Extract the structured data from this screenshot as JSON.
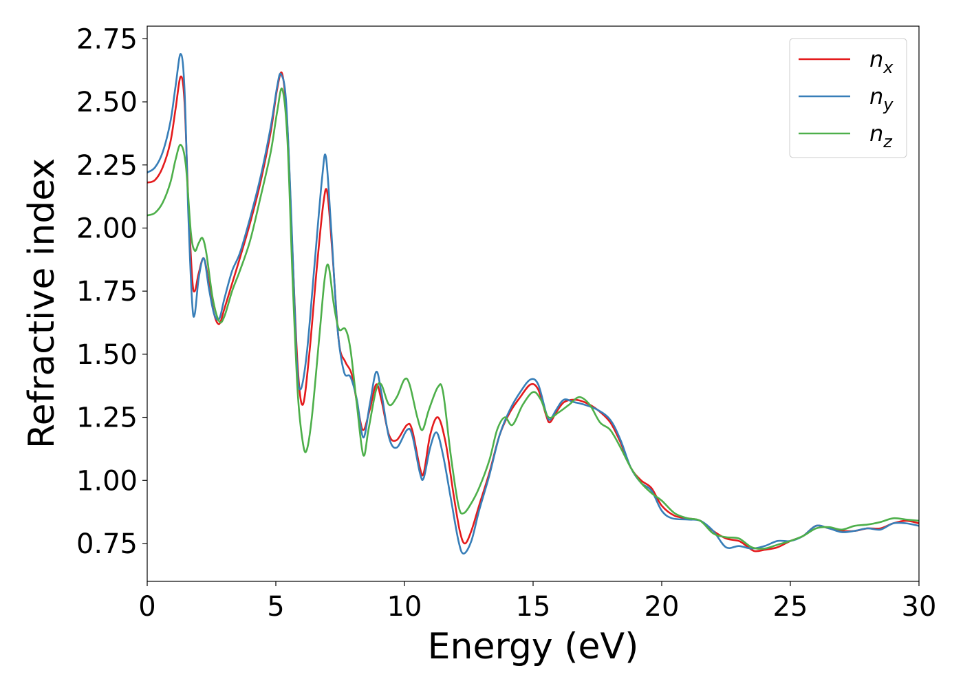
{
  "chart_data": {
    "type": "line",
    "title": "",
    "xlabel": "Energy (eV)",
    "ylabel": "Refractive index",
    "xlim": [
      0,
      30
    ],
    "ylim": [
      0.6,
      2.8
    ],
    "xticks": [
      0,
      5,
      10,
      15,
      20,
      25,
      30
    ],
    "xtick_labels": [
      "0",
      "5",
      "10",
      "15",
      "20",
      "25",
      "30"
    ],
    "yticks": [
      0.75,
      1.0,
      1.25,
      1.5,
      1.75,
      2.0,
      2.25,
      2.5,
      2.75
    ],
    "ytick_labels": [
      "0.75",
      "1.00",
      "1.25",
      "1.50",
      "1.75",
      "2.00",
      "2.25",
      "2.50",
      "2.75"
    ],
    "grid": false,
    "legend_position": "top-right",
    "series": [
      {
        "name": "n",
        "subscript": "x",
        "color": "#e41a1c",
        "points": [
          [
            0,
            2.18
          ],
          [
            0.3,
            2.19
          ],
          [
            0.6,
            2.24
          ],
          [
            0.9,
            2.34
          ],
          [
            1.1,
            2.47
          ],
          [
            1.3,
            2.6
          ],
          [
            1.45,
            2.5
          ],
          [
            1.6,
            2.1
          ],
          [
            1.75,
            1.8
          ],
          [
            1.85,
            1.75
          ],
          [
            2.0,
            1.82
          ],
          [
            2.2,
            1.88
          ],
          [
            2.4,
            1.78
          ],
          [
            2.6,
            1.66
          ],
          [
            2.8,
            1.62
          ],
          [
            3.0,
            1.68
          ],
          [
            3.3,
            1.78
          ],
          [
            3.6,
            1.88
          ],
          [
            4.0,
            2.02
          ],
          [
            4.4,
            2.18
          ],
          [
            4.8,
            2.38
          ],
          [
            5.05,
            2.55
          ],
          [
            5.25,
            2.61
          ],
          [
            5.45,
            2.4
          ],
          [
            5.65,
            1.9
          ],
          [
            5.85,
            1.45
          ],
          [
            6.05,
            1.3
          ],
          [
            6.3,
            1.5
          ],
          [
            6.6,
            1.85
          ],
          [
            6.85,
            2.1
          ],
          [
            7.0,
            2.14
          ],
          [
            7.2,
            1.9
          ],
          [
            7.45,
            1.55
          ],
          [
            7.7,
            1.47
          ],
          [
            7.95,
            1.42
          ],
          [
            8.2,
            1.28
          ],
          [
            8.4,
            1.2
          ],
          [
            8.65,
            1.28
          ],
          [
            8.9,
            1.38
          ],
          [
            9.1,
            1.32
          ],
          [
            9.4,
            1.18
          ],
          [
            9.7,
            1.16
          ],
          [
            10.1,
            1.22
          ],
          [
            10.3,
            1.2
          ],
          [
            10.6,
            1.05
          ],
          [
            10.75,
            1.03
          ],
          [
            11.0,
            1.18
          ],
          [
            11.3,
            1.25
          ],
          [
            11.6,
            1.15
          ],
          [
            11.9,
            0.95
          ],
          [
            12.15,
            0.8
          ],
          [
            12.35,
            0.75
          ],
          [
            12.6,
            0.8
          ],
          [
            12.9,
            0.9
          ],
          [
            13.3,
            1.03
          ],
          [
            13.7,
            1.18
          ],
          [
            14.1,
            1.27
          ],
          [
            14.5,
            1.33
          ],
          [
            14.9,
            1.38
          ],
          [
            15.2,
            1.36
          ],
          [
            15.5,
            1.26
          ],
          [
            15.65,
            1.23
          ],
          [
            15.9,
            1.27
          ],
          [
            16.2,
            1.31
          ],
          [
            16.6,
            1.32
          ],
          [
            17.0,
            1.31
          ],
          [
            17.5,
            1.28
          ],
          [
            18.0,
            1.23
          ],
          [
            18.4,
            1.15
          ],
          [
            18.8,
            1.05
          ],
          [
            19.2,
            1.0
          ],
          [
            19.6,
            0.97
          ],
          [
            20.0,
            0.9
          ],
          [
            20.5,
            0.86
          ],
          [
            21.0,
            0.85
          ],
          [
            21.5,
            0.84
          ],
          [
            22.0,
            0.8
          ],
          [
            22.5,
            0.77
          ],
          [
            23.0,
            0.76
          ],
          [
            23.3,
            0.74
          ],
          [
            23.6,
            0.72
          ],
          [
            24.0,
            0.725
          ],
          [
            24.5,
            0.735
          ],
          [
            25.0,
            0.76
          ],
          [
            25.5,
            0.78
          ],
          [
            26.0,
            0.82
          ],
          [
            26.5,
            0.81
          ],
          [
            27.0,
            0.8
          ],
          [
            27.5,
            0.8
          ],
          [
            28.0,
            0.81
          ],
          [
            28.5,
            0.81
          ],
          [
            29.0,
            0.83
          ],
          [
            29.5,
            0.84
          ],
          [
            30.0,
            0.83
          ]
        ]
      },
      {
        "name": "n",
        "subscript": "y",
        "color": "#377eb8",
        "points": [
          [
            0,
            2.22
          ],
          [
            0.3,
            2.24
          ],
          [
            0.6,
            2.3
          ],
          [
            0.9,
            2.42
          ],
          [
            1.1,
            2.56
          ],
          [
            1.3,
            2.69
          ],
          [
            1.45,
            2.55
          ],
          [
            1.6,
            2.05
          ],
          [
            1.75,
            1.7
          ],
          [
            1.85,
            1.66
          ],
          [
            2.0,
            1.8
          ],
          [
            2.2,
            1.88
          ],
          [
            2.4,
            1.76
          ],
          [
            2.6,
            1.66
          ],
          [
            2.8,
            1.64
          ],
          [
            3.0,
            1.72
          ],
          [
            3.3,
            1.83
          ],
          [
            3.6,
            1.9
          ],
          [
            4.0,
            2.04
          ],
          [
            4.4,
            2.2
          ],
          [
            4.8,
            2.4
          ],
          [
            5.05,
            2.56
          ],
          [
            5.2,
            2.61
          ],
          [
            5.4,
            2.5
          ],
          [
            5.6,
            2.05
          ],
          [
            5.8,
            1.5
          ],
          [
            5.95,
            1.36
          ],
          [
            6.2,
            1.5
          ],
          [
            6.5,
            1.85
          ],
          [
            6.8,
            2.2
          ],
          [
            6.95,
            2.28
          ],
          [
            7.15,
            2.0
          ],
          [
            7.4,
            1.6
          ],
          [
            7.65,
            1.43
          ],
          [
            7.9,
            1.41
          ],
          [
            8.15,
            1.32
          ],
          [
            8.4,
            1.17
          ],
          [
            8.65,
            1.3
          ],
          [
            8.9,
            1.43
          ],
          [
            9.1,
            1.35
          ],
          [
            9.4,
            1.17
          ],
          [
            9.7,
            1.13
          ],
          [
            10.1,
            1.2
          ],
          [
            10.3,
            1.18
          ],
          [
            10.6,
            1.03
          ],
          [
            10.75,
            1.01
          ],
          [
            11.0,
            1.13
          ],
          [
            11.25,
            1.19
          ],
          [
            11.5,
            1.1
          ],
          [
            11.8,
            0.93
          ],
          [
            12.1,
            0.76
          ],
          [
            12.3,
            0.71
          ],
          [
            12.6,
            0.76
          ],
          [
            12.9,
            0.88
          ],
          [
            13.3,
            1.02
          ],
          [
            13.7,
            1.18
          ],
          [
            14.1,
            1.28
          ],
          [
            14.5,
            1.35
          ],
          [
            14.9,
            1.4
          ],
          [
            15.2,
            1.38
          ],
          [
            15.5,
            1.27
          ],
          [
            15.65,
            1.24
          ],
          [
            15.9,
            1.28
          ],
          [
            16.2,
            1.32
          ],
          [
            16.6,
            1.31
          ],
          [
            17.0,
            1.3
          ],
          [
            17.5,
            1.28
          ],
          [
            18.0,
            1.24
          ],
          [
            18.4,
            1.16
          ],
          [
            18.8,
            1.05
          ],
          [
            19.2,
            0.99
          ],
          [
            19.6,
            0.96
          ],
          [
            20.0,
            0.88
          ],
          [
            20.4,
            0.85
          ],
          [
            21.0,
            0.845
          ],
          [
            21.5,
            0.84
          ],
          [
            22.0,
            0.8
          ],
          [
            22.5,
            0.735
          ],
          [
            23.0,
            0.74
          ],
          [
            23.5,
            0.73
          ],
          [
            24.0,
            0.74
          ],
          [
            24.5,
            0.76
          ],
          [
            25.0,
            0.76
          ],
          [
            25.5,
            0.78
          ],
          [
            26.0,
            0.82
          ],
          [
            26.5,
            0.81
          ],
          [
            27.0,
            0.795
          ],
          [
            27.5,
            0.8
          ],
          [
            28.0,
            0.81
          ],
          [
            28.5,
            0.805
          ],
          [
            29.0,
            0.83
          ],
          [
            29.5,
            0.83
          ],
          [
            30.0,
            0.82
          ]
        ]
      },
      {
        "name": "n",
        "subscript": "z",
        "color": "#4daf4a",
        "points": [
          [
            0,
            2.05
          ],
          [
            0.3,
            2.06
          ],
          [
            0.6,
            2.1
          ],
          [
            0.9,
            2.18
          ],
          [
            1.1,
            2.27
          ],
          [
            1.3,
            2.33
          ],
          [
            1.5,
            2.25
          ],
          [
            1.7,
            1.98
          ],
          [
            1.85,
            1.91
          ],
          [
            2.0,
            1.94
          ],
          [
            2.15,
            1.96
          ],
          [
            2.3,
            1.9
          ],
          [
            2.55,
            1.72
          ],
          [
            2.8,
            1.63
          ],
          [
            3.0,
            1.65
          ],
          [
            3.3,
            1.75
          ],
          [
            3.6,
            1.83
          ],
          [
            4.0,
            1.95
          ],
          [
            4.4,
            2.12
          ],
          [
            4.8,
            2.3
          ],
          [
            5.05,
            2.46
          ],
          [
            5.25,
            2.55
          ],
          [
            5.45,
            2.35
          ],
          [
            5.65,
            1.8
          ],
          [
            5.85,
            1.35
          ],
          [
            6.05,
            1.15
          ],
          [
            6.2,
            1.12
          ],
          [
            6.4,
            1.25
          ],
          [
            6.7,
            1.58
          ],
          [
            6.9,
            1.8
          ],
          [
            7.05,
            1.85
          ],
          [
            7.25,
            1.7
          ],
          [
            7.45,
            1.6
          ],
          [
            7.7,
            1.6
          ],
          [
            7.9,
            1.52
          ],
          [
            8.15,
            1.3
          ],
          [
            8.4,
            1.1
          ],
          [
            8.6,
            1.2
          ],
          [
            8.9,
            1.36
          ],
          [
            9.1,
            1.38
          ],
          [
            9.4,
            1.3
          ],
          [
            9.7,
            1.33
          ],
          [
            10.0,
            1.4
          ],
          [
            10.2,
            1.38
          ],
          [
            10.5,
            1.25
          ],
          [
            10.7,
            1.2
          ],
          [
            10.95,
            1.28
          ],
          [
            11.3,
            1.37
          ],
          [
            11.5,
            1.35
          ],
          [
            11.8,
            1.1
          ],
          [
            12.1,
            0.9
          ],
          [
            12.3,
            0.87
          ],
          [
            12.6,
            0.91
          ],
          [
            12.9,
            0.97
          ],
          [
            13.3,
            1.08
          ],
          [
            13.6,
            1.2
          ],
          [
            13.9,
            1.25
          ],
          [
            14.2,
            1.22
          ],
          [
            14.6,
            1.3
          ],
          [
            15.0,
            1.35
          ],
          [
            15.3,
            1.32
          ],
          [
            15.6,
            1.25
          ],
          [
            16.0,
            1.27
          ],
          [
            16.4,
            1.3
          ],
          [
            16.8,
            1.33
          ],
          [
            17.2,
            1.3
          ],
          [
            17.6,
            1.23
          ],
          [
            18.0,
            1.2
          ],
          [
            18.4,
            1.13
          ],
          [
            18.8,
            1.05
          ],
          [
            19.2,
            0.99
          ],
          [
            19.6,
            0.95
          ],
          [
            20.0,
            0.92
          ],
          [
            20.5,
            0.87
          ],
          [
            21.0,
            0.85
          ],
          [
            21.5,
            0.84
          ],
          [
            22.0,
            0.79
          ],
          [
            22.5,
            0.775
          ],
          [
            23.0,
            0.77
          ],
          [
            23.5,
            0.735
          ],
          [
            24.0,
            0.73
          ],
          [
            24.5,
            0.745
          ],
          [
            25.0,
            0.76
          ],
          [
            25.5,
            0.78
          ],
          [
            26.0,
            0.81
          ],
          [
            26.5,
            0.815
          ],
          [
            27.0,
            0.805
          ],
          [
            27.5,
            0.82
          ],
          [
            28.0,
            0.825
          ],
          [
            28.5,
            0.835
          ],
          [
            29.0,
            0.85
          ],
          [
            29.5,
            0.845
          ],
          [
            30.0,
            0.84
          ]
        ]
      }
    ]
  }
}
